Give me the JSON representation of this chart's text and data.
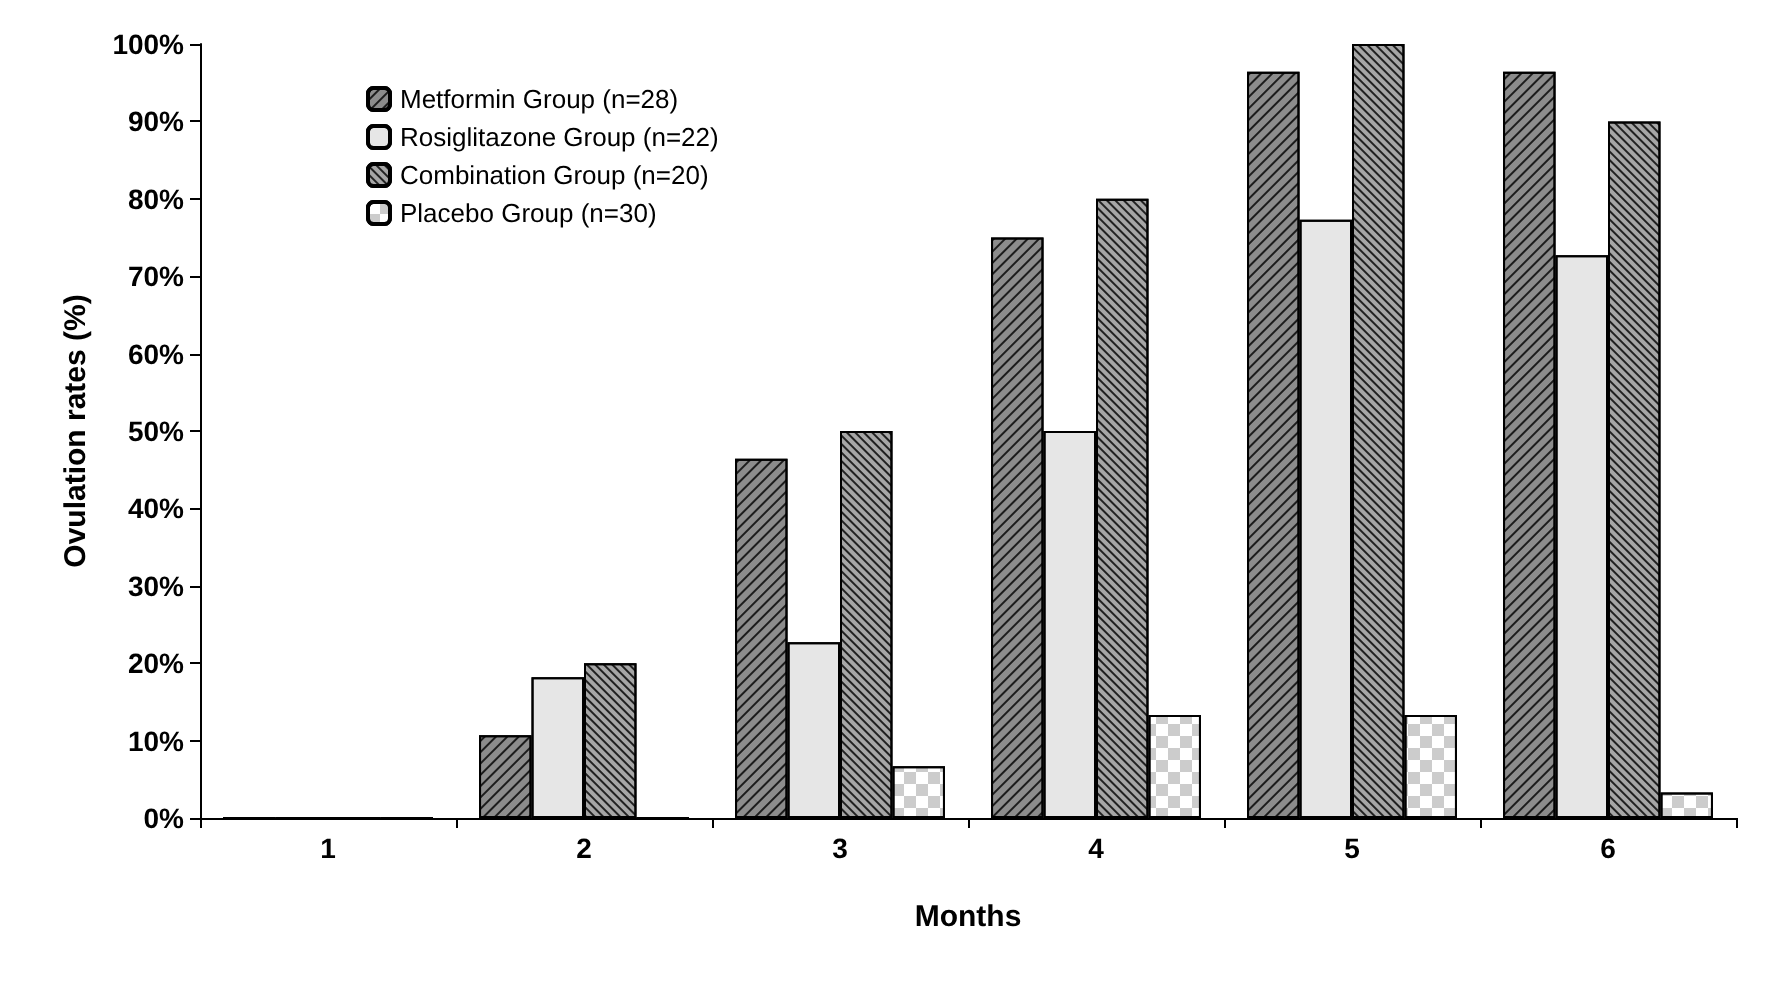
{
  "chart_data": {
    "type": "bar",
    "xlabel": "Months",
    "ylabel": "Ovulation rates (%)",
    "categories": [
      "1",
      "2",
      "3",
      "4",
      "5",
      "6"
    ],
    "series": [
      {
        "name": "Metformin Group (n=28)",
        "color": "#8c8c8c",
        "values": [
          0,
          10.7,
          46.4,
          75,
          96.4,
          96.4
        ]
      },
      {
        "name": "Rosiglitazone Group (n=22)",
        "color": "#e6e6e6",
        "values": [
          0,
          18.2,
          22.7,
          50,
          77.3,
          72.7
        ]
      },
      {
        "name": "Combination Group (n=20)",
        "color": "#a6a6a6",
        "values": [
          0,
          20,
          50,
          80,
          100,
          90
        ]
      },
      {
        "name": "Placebo Group (n=30)",
        "color": "#ffffff",
        "values": [
          0,
          0,
          6.7,
          13.3,
          13.3,
          3.3
        ]
      }
    ],
    "ylim": [
      0,
      100
    ],
    "yticks": [
      {
        "value": 0,
        "label": "0%"
      },
      {
        "value": 10,
        "label": "10%"
      },
      {
        "value": 20,
        "label": "20%"
      },
      {
        "value": 30,
        "label": "30%"
      },
      {
        "value": 40,
        "label": "40%"
      },
      {
        "value": 50,
        "label": "50%"
      },
      {
        "value": 60,
        "label": "60%"
      },
      {
        "value": 70,
        "label": "70%"
      },
      {
        "value": 80,
        "label": "80%"
      },
      {
        "value": 90,
        "label": "90%"
      },
      {
        "value": 100,
        "label": "100%"
      }
    ],
    "grid": false,
    "legend": "top left"
  }
}
